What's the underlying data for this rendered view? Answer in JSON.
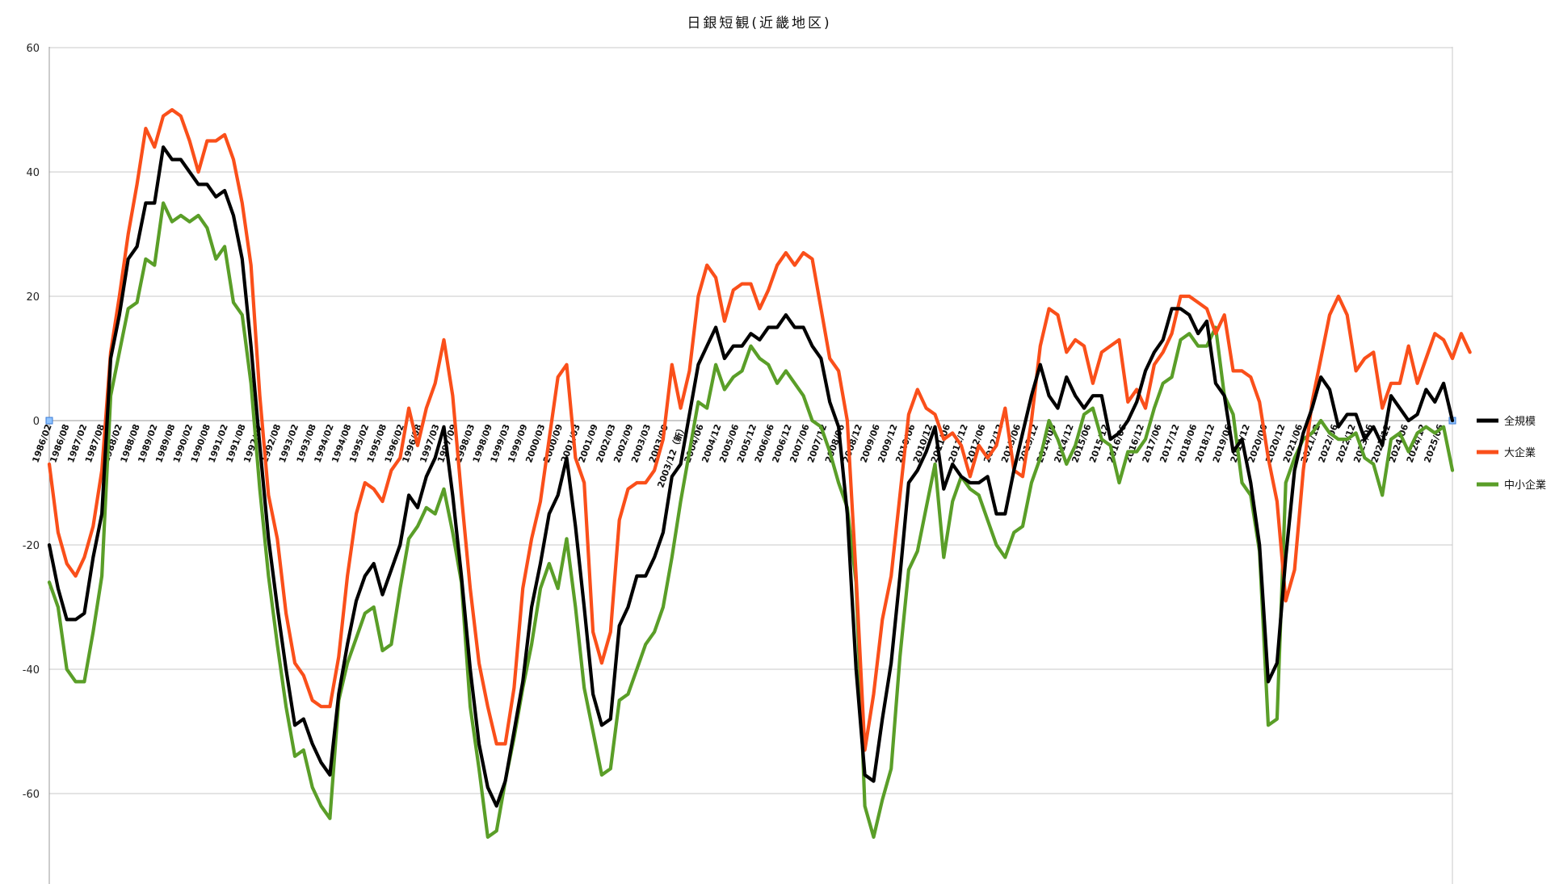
{
  "chart_data": {
    "type": "line",
    "title": "日銀短観(近畿地区)",
    "xlabel": "",
    "ylabel": "",
    "ylim": [
      -75,
      60
    ],
    "yticks": [
      60,
      40,
      20,
      0,
      -20,
      -40,
      -60
    ],
    "grid": true,
    "legend_position": "right",
    "x_tick_labels": [
      "1986/02",
      "1986/08",
      "1987/02",
      "1987/08",
      "1988/02",
      "1988/08",
      "1989/02",
      "1989/08",
      "1990/02",
      "1990/08",
      "1991/02",
      "1991/08",
      "1992/02",
      "1992/08",
      "1993/02",
      "1993/08",
      "1994/02",
      "1994/08",
      "1995/02",
      "1995/08",
      "1996/02",
      "1996/08",
      "1997/03",
      "1997/09",
      "1998/03",
      "1998/09",
      "1999/03",
      "1999/09",
      "2000/03",
      "2000/09",
      "2001/03",
      "2001/09",
      "2002/03",
      "2002/09",
      "2003/03",
      "2003/09",
      "2003/12（新）",
      "2004/06",
      "2004/12",
      "2005/06",
      "2005/12",
      "2006/06",
      "2006/12",
      "2007/06",
      "2007/12",
      "2008/06",
      "2008/12",
      "2009/06",
      "2009/12",
      "2010/06",
      "2010/12",
      "2011/06",
      "2011/12",
      "2012/06",
      "2012/12",
      "2013/06",
      "2013/12",
      "2014/06",
      "2014/12",
      "2015/06",
      "2015/12",
      "2016/06",
      "2016/12",
      "2017/06",
      "2017/12",
      "2018/06",
      "2018/12",
      "2019/06",
      "2019/12",
      "2020/06",
      "2020/12",
      "2021/06",
      "2021/12",
      "2022/06",
      "2022/12",
      "2023/06",
      "2023/12",
      "2024/06",
      "2024/12",
      "2025/06"
    ],
    "series": [
      {
        "name": "全規模",
        "color": "#000000",
        "values": [
          -20,
          -27,
          -32,
          -32,
          -31,
          -22,
          -15,
          10,
          17,
          26,
          28,
          35,
          35,
          44,
          42,
          42,
          40,
          38,
          38,
          36,
          37,
          33,
          26,
          12,
          -4,
          -19,
          -30,
          -40,
          -49,
          -48,
          -52,
          -55,
          -57,
          -44,
          -36,
          -29,
          -25,
          -23,
          -28,
          -24,
          -20,
          -12,
          -14,
          -9,
          -6,
          -1,
          -12,
          -25,
          -40,
          -52,
          -59,
          -62,
          -58,
          -50,
          -42,
          -30,
          -23,
          -15,
          -12,
          -6,
          -17,
          -30,
          -44,
          -49,
          -48,
          -33,
          -30,
          -25,
          -25,
          -22,
          -18,
          -9,
          -7,
          1,
          9,
          12,
          15,
          10,
          12,
          12,
          14,
          13,
          15,
          15,
          17,
          15,
          15,
          12,
          10,
          3,
          -1,
          -15,
          -40,
          -57,
          -58,
          -48,
          -39,
          -25,
          -10,
          -8,
          -5,
          -1,
          -11,
          -7,
          -9,
          -10,
          -10,
          -9,
          -15,
          -15,
          -8,
          -2,
          4,
          9,
          4,
          2,
          7,
          4,
          2,
          4,
          4,
          -3,
          -2,
          0,
          3,
          8,
          11,
          13,
          18,
          18,
          17,
          14,
          16,
          6,
          4,
          -5,
          -3,
          -10,
          -20,
          -42,
          -39,
          -22,
          -8,
          -2,
          2,
          7,
          5,
          -1,
          1,
          1,
          -3,
          -1,
          -4,
          4,
          2,
          0,
          1,
          5,
          3,
          6,
          0
        ]
      },
      {
        "name": "大企業",
        "color": "#fa4f1a",
        "values": [
          -7,
          -18,
          -23,
          -25,
          -22,
          -17,
          -8,
          11,
          20,
          30,
          38,
          47,
          44,
          49,
          50,
          49,
          45,
          40,
          45,
          45,
          46,
          42,
          35,
          25,
          4,
          -12,
          -19,
          -31,
          -39,
          -41,
          -45,
          -46,
          -46,
          -38,
          -25,
          -15,
          -10,
          -11,
          -13,
          -8,
          -6,
          2,
          -4,
          2,
          6,
          13,
          4,
          -12,
          -27,
          -39,
          -46,
          -52,
          -52,
          -43,
          -27,
          -19,
          -13,
          -3,
          7,
          9,
          -6,
          -10,
          -34,
          -39,
          -34,
          -16,
          -11,
          -10,
          -10,
          -8,
          -3,
          9,
          2,
          8,
          20,
          25,
          23,
          16,
          21,
          22,
          22,
          18,
          21,
          25,
          27,
          25,
          27,
          26,
          18,
          10,
          8,
          0,
          -25,
          -53,
          -44,
          -32,
          -25,
          -12,
          1,
          5,
          2,
          1,
          -3,
          -2,
          -4,
          -9,
          -4,
          -6,
          -4,
          2,
          -8,
          -9,
          0,
          12,
          18,
          17,
          11,
          13,
          12,
          6,
          11,
          12,
          13,
          3,
          5,
          2,
          9,
          11,
          14,
          20,
          20,
          19,
          18,
          14,
          17,
          8,
          8,
          7,
          3,
          -6,
          -13,
          -29,
          -24,
          -8,
          3,
          10,
          17,
          20,
          17,
          8,
          10,
          11,
          2,
          6,
          6,
          12,
          6,
          10,
          14,
          13,
          10,
          14,
          11
        ]
      },
      {
        "name": "中小企業",
        "color": "#5a9e28",
        "values": [
          -26,
          -30,
          -40,
          -42,
          -42,
          -34,
          -25,
          4,
          11,
          18,
          19,
          26,
          25,
          35,
          32,
          33,
          32,
          33,
          31,
          26,
          28,
          19,
          17,
          6,
          -11,
          -25,
          -36,
          -46,
          -54,
          -53,
          -59,
          -62,
          -64,
          -45,
          -39,
          -35,
          -31,
          -30,
          -37,
          -36,
          -27,
          -19,
          -17,
          -14,
          -15,
          -11,
          -18,
          -26,
          -46,
          -56,
          -67,
          -66,
          -58,
          -51,
          -43,
          -36,
          -27,
          -23,
          -27,
          -19,
          -30,
          -43,
          -50,
          -57,
          -56,
          -45,
          -44,
          -40,
          -36,
          -34,
          -30,
          -22,
          -13,
          -5,
          3,
          2,
          9,
          5,
          7,
          8,
          12,
          10,
          9,
          6,
          8,
          6,
          4,
          0,
          -1,
          -5,
          -10,
          -14,
          -26,
          -62,
          -67,
          -61,
          -56,
          -38,
          -24,
          -21,
          -14,
          -7,
          -22,
          -13,
          -9,
          -11,
          -12,
          -16,
          -20,
          -22,
          -18,
          -17,
          -10,
          -6,
          0,
          -3,
          -7,
          -4,
          1,
          2,
          -3,
          -4,
          -10,
          -5,
          -5,
          -3,
          2,
          6,
          7,
          13,
          14,
          12,
          12,
          15,
          4,
          1,
          -10,
          -12,
          -21,
          -49,
          -48,
          -10,
          -6,
          -3,
          -2,
          0,
          -2,
          -3,
          -3,
          -2,
          -6,
          -7,
          -12,
          -3,
          -2,
          -5,
          -2,
          -1,
          -2,
          -1,
          -8
        ]
      }
    ]
  }
}
